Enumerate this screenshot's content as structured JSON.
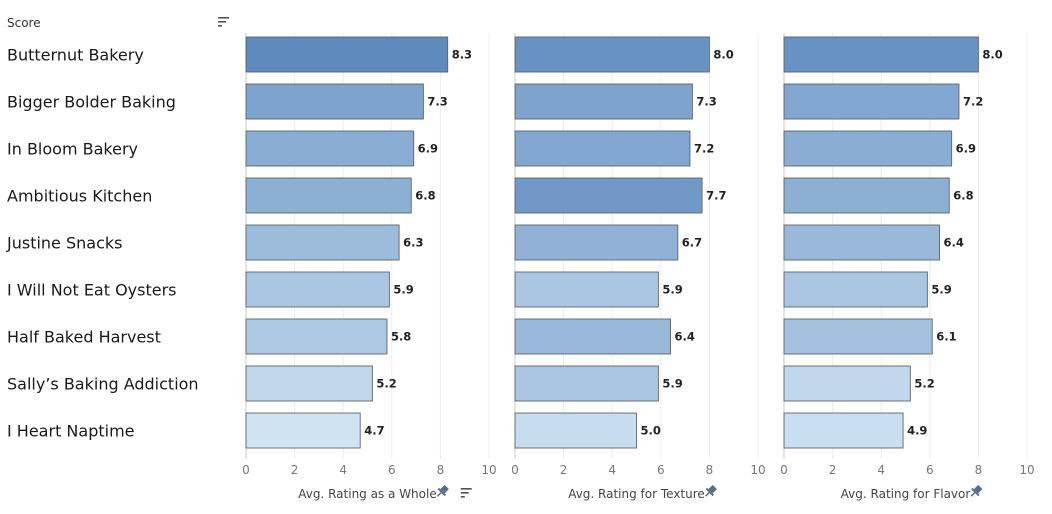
{
  "header": {
    "row_header": "Score"
  },
  "chart_data": {
    "type": "bar",
    "orientation": "horizontal",
    "categories": [
      "Butternut Bakery",
      "Bigger Bolder Baking",
      "In Bloom Bakery",
      "Ambitious Kitchen",
      "Justine Snacks",
      "I Will Not Eat Oysters",
      "Half Baked Harvest",
      "Sally’s Baking Addiction",
      "I Heart Naptime"
    ],
    "xlim": [
      0,
      10
    ],
    "ticks": [
      "0",
      "2",
      "4",
      "6",
      "8",
      "10"
    ],
    "grid": true,
    "series": [
      {
        "name": "Avg. Rating as a Whole",
        "values": [
          8.3,
          7.3,
          6.9,
          6.8,
          6.3,
          5.9,
          5.8,
          5.2,
          4.7
        ],
        "sorted": true,
        "pinned": true
      },
      {
        "name": "Avg. Rating for Texture",
        "values": [
          8.0,
          7.3,
          7.2,
          7.7,
          6.7,
          5.9,
          6.4,
          5.9,
          5.0
        ],
        "sorted": false,
        "pinned": true
      },
      {
        "name": "Avg. Rating for Flavor",
        "values": [
          8.0,
          7.2,
          6.9,
          6.8,
          6.4,
          5.9,
          6.1,
          5.2,
          4.9
        ],
        "sorted": false,
        "pinned": true
      }
    ],
    "color_scale": {
      "low": "#d6e8f6",
      "high": "#5b88bd"
    }
  }
}
